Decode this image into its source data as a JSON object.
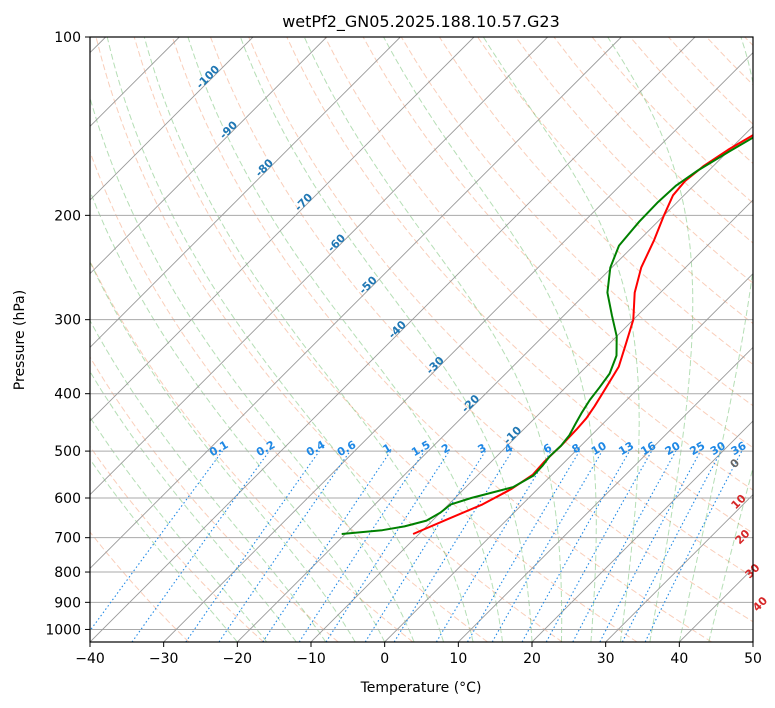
{
  "chart_data": {
    "type": "line",
    "title": "wetPf2_GN05.2025.188.10.57.G23",
    "xlabel": "Temperature (°C)",
    "ylabel": "Pressure (hPa)",
    "xlim": [
      -40,
      50
    ],
    "ylim": [
      1050,
      100
    ],
    "y_scale": "log",
    "grid": true,
    "x_ticks": [
      "−40",
      "−30",
      "−20",
      "−10",
      "0",
      "10",
      "20",
      "30",
      "40",
      "50"
    ],
    "x_tick_values": [
      -40,
      -30,
      -20,
      -10,
      0,
      10,
      20,
      30,
      40,
      50
    ],
    "y_ticks": [
      "100",
      "200",
      "300",
      "400",
      "500",
      "600",
      "700",
      "800",
      "900",
      "1000"
    ],
    "y_tick_values": [
      100,
      200,
      300,
      400,
      500,
      600,
      700,
      800,
      900,
      1000
    ],
    "colors": {
      "temperature": "#ff0000",
      "dewpoint": "#008000",
      "isotherm": "#999999",
      "isobar": "#aaaaaa",
      "dry_adiabat": "#f4a582",
      "moist_adiabat": "#2ca02c",
      "mixing_ratio": "#1e88e5",
      "isotherm_label": "#1f77b4",
      "theta_label": "#d62728"
    },
    "series": [
      {
        "key": "temperature",
        "style": "red",
        "points": [
          [
            -10.8,
            690
          ],
          [
            -8.0,
            650
          ],
          [
            -5.4,
            615
          ],
          [
            -3.6,
            580
          ],
          [
            -2.6,
            548
          ],
          [
            -2.8,
            520
          ],
          [
            -2.7,
            490
          ],
          [
            -2.8,
            460
          ],
          [
            -3.0,
            440
          ],
          [
            -3.5,
            420
          ],
          [
            -4.5,
            390
          ],
          [
            -5.6,
            360
          ],
          [
            -7.7,
            330
          ],
          [
            -10.0,
            300
          ],
          [
            -13.5,
            270
          ],
          [
            -16.0,
            245
          ],
          [
            -18.0,
            220
          ],
          [
            -20.0,
            200
          ],
          [
            -21.5,
            185
          ],
          [
            -21.8,
            175
          ],
          [
            -21.3,
            165
          ],
          [
            -20.2,
            155
          ],
          [
            -18.2,
            143
          ],
          [
            -14.5,
            130
          ],
          [
            -10.8,
            120
          ],
          [
            -7.2,
            111
          ],
          [
            -4.8,
            105
          ],
          [
            -3.2,
            100
          ]
        ]
      },
      {
        "key": "dewpoint",
        "style": "green",
        "points": [
          [
            -20.5,
            690
          ],
          [
            -15.5,
            680
          ],
          [
            -13.0,
            670
          ],
          [
            -10.8,
            655
          ],
          [
            -10.0,
            635
          ],
          [
            -9.7,
            615
          ],
          [
            -7.8,
            600
          ],
          [
            -3.6,
            575
          ],
          [
            -2.4,
            550
          ],
          [
            -2.5,
            530
          ],
          [
            -2.8,
            510
          ],
          [
            -2.7,
            490
          ],
          [
            -3.0,
            470
          ],
          [
            -3.7,
            450
          ],
          [
            -4.4,
            430
          ],
          [
            -5.0,
            410
          ],
          [
            -5.4,
            390
          ],
          [
            -5.9,
            370
          ],
          [
            -7.4,
            345
          ],
          [
            -10.0,
            320
          ],
          [
            -13.5,
            295
          ],
          [
            -17.2,
            270
          ],
          [
            -20.2,
            245
          ],
          [
            -22.0,
            225
          ],
          [
            -22.5,
            205
          ],
          [
            -22.6,
            190
          ],
          [
            -22.4,
            178
          ],
          [
            -21.5,
            168
          ],
          [
            -19.8,
            156
          ],
          [
            -17.8,
            144
          ],
          [
            -14.8,
            132
          ],
          [
            -11.8,
            122
          ],
          [
            -8.4,
            112
          ],
          [
            -5.8,
            105
          ],
          [
            -4.3,
            100
          ]
        ]
      }
    ],
    "isotherm_labels": [
      "-100",
      "-90",
      "-80",
      "-70",
      "-60",
      "-50",
      "-40",
      "-30",
      "-20",
      "-10"
    ],
    "isotherm_label_values": [
      -100,
      -90,
      -80,
      -70,
      -60,
      -50,
      -40,
      -30,
      -20,
      -10
    ],
    "isotherm_label_pressures": [
      118,
      145,
      168,
      192,
      225,
      265,
      315,
      362,
      420,
      475
    ],
    "mixing_ratio_labels": [
      "0.1",
      "0.2",
      "0.4",
      "0.6",
      "1",
      "1.5",
      "2",
      "3",
      "4",
      "6",
      "8",
      "10",
      "13",
      "16",
      "20",
      "25",
      "30",
      "36"
    ],
    "mixing_ratio_values": [
      0.1,
      0.2,
      0.4,
      0.6,
      1,
      1.5,
      2,
      3,
      4,
      6,
      8,
      10,
      13,
      16,
      20,
      25,
      30,
      36
    ],
    "theta_labels": [
      "0",
      "10",
      "20",
      "30",
      "40"
    ],
    "theta_label_positions": [
      [
        24.0,
        530
      ],
      [
        29.7,
        615
      ],
      [
        35.0,
        705
      ],
      [
        41.0,
        805
      ],
      [
        46.5,
        915
      ]
    ],
    "theta_label_colors": [
      "#666666",
      "#d62728",
      "#d62728",
      "#d62728",
      "#d62728"
    ]
  }
}
